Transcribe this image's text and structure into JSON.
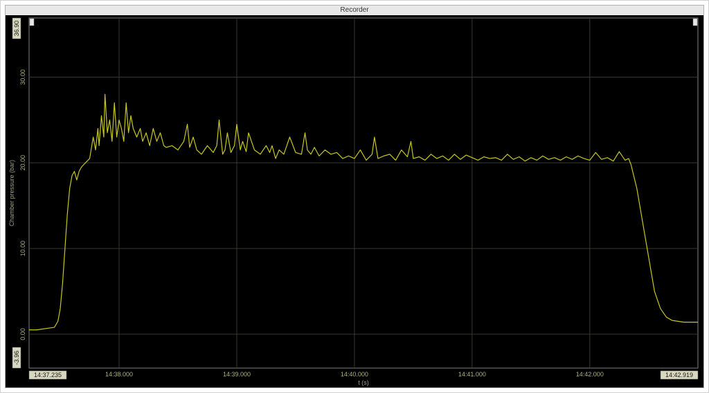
{
  "window": {
    "title": "Recorder"
  },
  "chart": {
    "type": "line",
    "background_color": "#000000",
    "grid_color": "#3a3a2e",
    "axis_color": "#808080",
    "tick_label_color": "#b0b080",
    "tick_fontsize": 9,
    "axis_label_color": "#a0a080",
    "axis_label_fontsize": 9,
    "series_color": "#c8c820",
    "line_width": 1.2,
    "y": {
      "label": "Chamber pressure (bar)",
      "min": -3.96,
      "max": 36.9,
      "ticks": [
        0.0,
        10.0,
        20.0,
        30.0
      ],
      "tick_labels": [
        "0.00",
        "10.00",
        "20.00",
        "30.00"
      ],
      "box_min_label": "-3.96",
      "box_max_label": "36.90",
      "box_bg": "#d8d8c0",
      "box_text": "#1a1a1a"
    },
    "x": {
      "label": "t (s)",
      "ticks": [
        38.0,
        39.0,
        40.0,
        41.0,
        42.0
      ],
      "tick_labels": [
        "14:38.000",
        "14:39.000",
        "14:40.000",
        "14:41.000",
        "14:42.000"
      ],
      "box_min_label": "14:37.235",
      "box_max_label": "14:42.919",
      "box_bg": "#d8d8c0",
      "box_text": "#1a1a1a",
      "min": 37.235,
      "max": 42.919
    },
    "data": {
      "x": [
        37.235,
        37.3,
        37.35,
        37.4,
        37.45,
        37.48,
        37.5,
        37.52,
        37.54,
        37.56,
        37.58,
        37.6,
        37.62,
        37.64,
        37.66,
        37.68,
        37.7,
        37.75,
        37.78,
        37.8,
        37.82,
        37.83,
        37.85,
        37.87,
        37.88,
        37.9,
        37.92,
        37.94,
        37.96,
        37.98,
        38.0,
        38.02,
        38.04,
        38.06,
        38.08,
        38.1,
        38.12,
        38.15,
        38.18,
        38.2,
        38.23,
        38.26,
        38.29,
        38.32,
        38.35,
        38.38,
        38.4,
        38.45,
        38.5,
        38.55,
        38.58,
        38.6,
        38.63,
        38.66,
        38.7,
        38.75,
        38.8,
        38.83,
        38.85,
        38.88,
        38.9,
        38.92,
        38.95,
        38.98,
        39.0,
        39.03,
        39.05,
        39.08,
        39.1,
        39.15,
        39.2,
        39.25,
        39.28,
        39.3,
        39.33,
        39.36,
        39.4,
        39.45,
        39.5,
        39.55,
        39.58,
        39.6,
        39.63,
        39.66,
        39.7,
        39.75,
        39.8,
        39.85,
        39.9,
        39.95,
        40.0,
        40.05,
        40.1,
        40.15,
        40.17,
        40.2,
        40.25,
        40.3,
        40.35,
        40.4,
        40.45,
        40.48,
        40.5,
        40.55,
        40.6,
        40.65,
        40.7,
        40.75,
        40.8,
        40.85,
        40.9,
        40.95,
        41.0,
        41.05,
        41.1,
        41.15,
        41.2,
        41.25,
        41.3,
        41.35,
        41.4,
        41.45,
        41.5,
        41.55,
        41.6,
        41.65,
        41.7,
        41.75,
        41.8,
        41.85,
        41.9,
        41.95,
        42.0,
        42.05,
        42.1,
        42.15,
        42.2,
        42.25,
        42.3,
        42.33,
        42.35,
        42.4,
        42.45,
        42.5,
        42.55,
        42.6,
        42.65,
        42.7,
        42.75,
        42.8,
        42.85,
        42.9,
        42.919
      ],
      "y": [
        0.5,
        0.5,
        0.6,
        0.7,
        0.8,
        1.5,
        3.0,
        6.0,
        10.0,
        14.0,
        17.0,
        18.5,
        19.0,
        18.0,
        19.0,
        19.5,
        19.8,
        20.5,
        23.0,
        21.5,
        24.0,
        22.0,
        25.5,
        23.0,
        28.0,
        23.5,
        25.0,
        22.5,
        27.0,
        23.0,
        25.0,
        24.0,
        22.5,
        27.0,
        23.5,
        25.5,
        24.0,
        23.0,
        24.0,
        22.5,
        23.5,
        22.0,
        24.0,
        22.5,
        23.5,
        22.0,
        21.8,
        22.0,
        21.5,
        22.5,
        24.5,
        21.8,
        23.0,
        21.5,
        21.0,
        22.0,
        21.2,
        22.0,
        25.0,
        21.0,
        21.5,
        23.5,
        21.2,
        22.0,
        24.5,
        21.5,
        22.5,
        21.3,
        23.5,
        21.5,
        21.0,
        22.0,
        21.2,
        22.0,
        20.5,
        21.5,
        21.0,
        23.0,
        21.2,
        21.0,
        23.5,
        21.5,
        21.0,
        21.8,
        20.8,
        21.5,
        21.0,
        21.2,
        20.5,
        20.8,
        20.5,
        21.5,
        20.3,
        21.0,
        23.0,
        20.5,
        20.8,
        21.0,
        20.3,
        21.5,
        20.7,
        22.5,
        20.5,
        20.7,
        20.3,
        21.0,
        20.5,
        20.8,
        20.3,
        21.0,
        20.4,
        20.9,
        20.6,
        20.3,
        20.7,
        20.5,
        20.6,
        20.3,
        21.0,
        20.4,
        20.7,
        20.2,
        20.6,
        20.3,
        20.8,
        20.4,
        20.6,
        20.3,
        20.7,
        20.4,
        20.8,
        20.5,
        20.3,
        21.2,
        20.4,
        20.6,
        20.2,
        21.3,
        20.3,
        20.5,
        19.8,
        17.0,
        13.0,
        9.0,
        5.0,
        3.0,
        2.0,
        1.6,
        1.5,
        1.4,
        1.4,
        1.4,
        1.4
      ]
    }
  }
}
